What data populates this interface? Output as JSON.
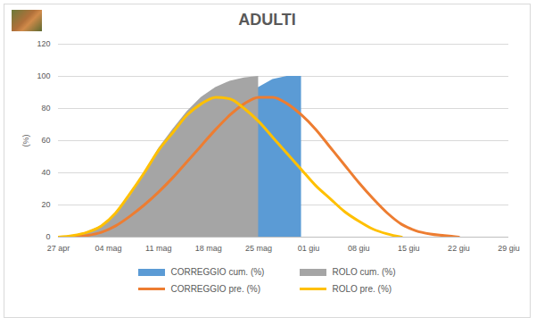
{
  "chart_data": {
    "type": "line",
    "title": "ADULTI",
    "y_label": "(%)",
    "x": [
      0,
      2,
      4,
      6,
      8,
      10,
      12,
      14,
      16,
      18,
      20,
      22,
      24,
      26,
      28,
      30,
      32,
      34,
      36,
      38,
      40,
      42,
      44,
      46,
      48,
      50,
      52,
      54,
      56
    ],
    "xlim": [
      0,
      63
    ],
    "xticks": [
      {
        "value": 0,
        "label": "27 apr"
      },
      {
        "value": 7,
        "label": "04 mag"
      },
      {
        "value": 14,
        "label": "11 mag"
      },
      {
        "value": 21,
        "label": "18 mag"
      },
      {
        "value": 28,
        "label": "25 mag"
      },
      {
        "value": 35,
        "label": "01 giu"
      },
      {
        "value": 42,
        "label": "08 giu"
      },
      {
        "value": 49,
        "label": "15 giu"
      },
      {
        "value": 56,
        "label": "22 giu"
      },
      {
        "value": 63,
        "label": "29 giu"
      }
    ],
    "ylim": [
      0,
      120
    ],
    "yticks": [
      0,
      20,
      40,
      60,
      80,
      100,
      120
    ],
    "grid": true,
    "legend": "bottom",
    "series": [
      {
        "name": "CORREGGIO cum. (%)",
        "type": "area",
        "color": "#5b9bd5",
        "values": [
          0,
          0,
          1,
          3,
          7,
          13,
          22,
          33,
          45,
          56,
          66,
          75,
          83,
          89,
          93,
          98,
          100,
          100,
          null,
          null,
          null,
          null,
          null,
          null,
          null,
          null,
          null,
          null,
          null
        ]
      },
      {
        "name": "ROLO cum. (%)",
        "type": "area",
        "color": "#a5a5a5",
        "values": [
          0,
          1,
          3,
          7,
          14,
          25,
          40,
          55,
          67,
          78,
          87,
          93,
          97,
          99,
          100,
          null,
          null,
          null,
          null,
          null,
          null,
          null,
          null,
          null,
          null,
          null,
          null,
          null,
          null
        ]
      },
      {
        "name": "CORREGGIO pre. (%)",
        "type": "line",
        "color": "#ed7d31",
        "values": [
          0,
          0,
          1,
          3,
          7,
          13,
          20,
          28,
          37,
          47,
          57,
          67,
          76,
          83,
          87,
          87,
          83,
          76,
          67,
          56,
          45,
          34,
          24,
          15,
          8,
          4,
          2,
          1,
          0
        ]
      },
      {
        "name": "ROLO pre. (%)",
        "type": "line",
        "color": "#ffc000",
        "values": [
          0,
          1,
          3,
          7,
          15,
          27,
          40,
          54,
          65,
          76,
          83,
          87,
          86,
          80,
          72,
          62,
          52,
          42,
          32,
          24,
          16,
          10,
          5,
          2,
          0,
          null,
          null,
          null,
          null
        ]
      }
    ]
  }
}
